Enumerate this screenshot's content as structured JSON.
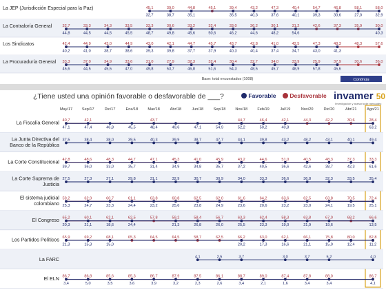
{
  "top_table": {
    "rows": [
      {
        "label": "La JEP (Jurisdicción Especial para la Paz)",
        "fav": [
          null,
          null,
          null,
          null,
          32.7,
          38.7,
          35.1,
          null,
          35.5,
          40.3,
          37.6,
          40.1,
          39.3,
          30.6,
          27.0,
          32.9
        ],
        "des": [
          null,
          null,
          null,
          null,
          45.1,
          39.0,
          44.8,
          45.1,
          39.4,
          43.2,
          47.3,
          40.4,
          54.7,
          46.8,
          58.1,
          58.0
        ]
      },
      {
        "label": "La Contraloría General",
        "fav": [
          44.8,
          44.5,
          44.5,
          45.5,
          48.7,
          49.8,
          45.6,
          50.6,
          46.2,
          44.6,
          48.2,
          54.6,
          null,
          null,
          null,
          40.3
        ],
        "des": [
          32.7,
          33.3,
          34.3,
          33.5,
          33.3,
          30.6,
          33.2,
          32.4,
          33.0,
          36.2,
          30.1,
          31.2,
          42.6,
          37.3,
          35.9,
          30.0
        ]
      },
      {
        "label": "Los Sindicatos",
        "fav": [
          40.2,
          41.0,
          38.7,
          38.6,
          39.3,
          39.8,
          37.7,
          37.9,
          40.3,
          40.4,
          37.4,
          34.7,
          43.0,
          41.3,
          null,
          null
        ],
        "des": [
          42.4,
          44.9,
          43.0,
          44.9,
          43.0,
          42.1,
          44.7,
          45.7,
          43.7,
          42.8,
          41.0,
          42.5,
          47.3,
          48.3,
          48.3,
          57.6
        ]
      },
      {
        "label": "La Procuraduría General",
        "fav": [
          45.6,
          44.5,
          45.5,
          47.0,
          49.8,
          53.7,
          46.8,
          51.6,
          54.3,
          48.5,
          45.7,
          48.9,
          57.8,
          45.6,
          null,
          null
        ],
        "des": [
          33.3,
          37.0,
          34.9,
          33.6,
          31.0,
          27.9,
          32.3,
          32.4,
          30.4,
          32.7,
          34.0,
          33.9,
          25.9,
          37.9,
          30.6,
          36.0
        ]
      }
    ],
    "footnote": "Base: total encuestados (1008)",
    "continued": "Continúa"
  },
  "header": {
    "question": "¿Tiene usted una opinión favorable o desfavorable de ___?",
    "legend_favorable": "Favorable",
    "legend_unfavorable": "Desfavorable",
    "logo_main": "invamer",
    "logo_suffix": "50",
    "logo_tagline": "Investigación y asesoría de mercadeo"
  },
  "colors": {
    "favorable": "#1f2a6b",
    "unfavorable": "#a8323a",
    "highlight": "#d8a21b",
    "row_band": "#eef1f7"
  },
  "chart_data": {
    "type": "line",
    "categories": [
      "May/17",
      "Sep/17",
      "Dic/17",
      "Ene/18",
      "Mar/18",
      "Abr/18",
      "Jun/18",
      "Sep/18",
      "Nov/18",
      "Feb/19",
      "Jul/19",
      "Nov/20",
      "Dic/20",
      "Abr/21",
      "Ago/21"
    ],
    "highlight_category": "Ago/21",
    "rows": [
      {
        "label": "La Fiscalía General",
        "fav": [
          47.1,
          47.4,
          46.8,
          45.5,
          48.4,
          49.6,
          47.1,
          54.9,
          52.2,
          50.2,
          40.8,
          null,
          null,
          null,
          63.2
        ],
        "des": [
          40.7,
          42.1,
          null,
          null,
          43.7,
          null,
          null,
          null,
          44.7,
          46.4,
          42.1,
          44.3,
          42.2,
          30.6,
          28.4
        ]
      },
      {
        "label": "La Junta Directiva del Banco de la República",
        "fav": [
          37.5,
          38.4,
          38.0,
          39.5,
          40.3,
          39.9,
          38.7,
          47.7,
          44.1,
          39.8,
          43.2,
          48.2,
          43.1,
          40.1,
          49.4
        ]
      },
      {
        "label": "La Corte Constitucional",
        "fav": [
          39.7,
          36.0,
          33.0,
          35.7,
          31.4,
          34.9,
          34.8,
          35.7,
          37.2,
          40.5,
          36.6,
          42.6,
          38.7,
          42.3,
          61.6
        ],
        "des": [
          42.8,
          48.6,
          48.3,
          44.7,
          47.1,
          45.3,
          41.0,
          45.9,
          43.2,
          44.6,
          51.0,
          40.5,
          48.3,
          37.3,
          33.3
        ]
      },
      {
        "label": "La Corte Suprema de Justicia",
        "fav": [
          27.5,
          27.3,
          27.1,
          29.8,
          31.1,
          32.9,
          30.7,
          30.9,
          34.0,
          33.3,
          36.6,
          36.8,
          32.3,
          33.5,
          35.4
        ]
      },
      {
        "label": "El sistema judicial colombiano",
        "fav": [
          25.3,
          24.7,
          23.3,
          24.4,
          23.2,
          25.6,
          23.8,
          24.9,
          23.6,
          20.6,
          23.2,
          23.0,
          24.1,
          19.5,
          25.1
        ],
        "des": [
          59.2,
          62.9,
          60.7,
          61.1,
          63.8,
          60.8,
          62.5,
          62.0,
          61.6,
          64.2,
          63.6,
          62.5,
          63.8,
          70.5,
          72.4
        ]
      },
      {
        "label": "El Congreso",
        "fav": [
          20.3,
          21.1,
          18.6,
          24.4,
          null,
          21.3,
          26.8,
          26.0,
          25.5,
          23.3,
          19.0,
          21.9,
          19.6,
          null,
          13.5
        ],
        "des": [
          65.2,
          60.1,
          62.1,
          62.5,
          57.8,
          59.2,
          58.4,
          56.7,
          63.3,
          62.4,
          58.3,
          63.8,
          67.0,
          68.2,
          66.6
        ]
      },
      {
        "label": "Los Partidos Políticos",
        "fav": [
          21.3,
          15.3,
          15.0,
          null,
          null,
          null,
          null,
          null,
          20.2,
          17.3,
          16.6,
          21.1,
          15.0,
          12.4,
          11.2
        ],
        "des": [
          65.9,
          69.2,
          68.1,
          65.3,
          64.5,
          64.5,
          58.7,
          62.5,
          66.2,
          63.0,
          62.1,
          66.1,
          75.8,
          80.0,
          82.8
        ]
      },
      {
        "label": "La FARC",
        "fav": [
          null,
          null,
          null,
          null,
          null,
          null,
          4.1,
          2.5,
          3.7,
          null,
          3.0,
          3.7,
          5.2,
          null,
          4.0
        ]
      },
      {
        "label": "El ELN",
        "fav": [
          3.4,
          5.0,
          3.5,
          3.6,
          3.9,
          3.2,
          2.3,
          2.6,
          3.4,
          2.1,
          1.6,
          3.4,
          3.4,
          null,
          4.1
        ],
        "des": [
          86.7,
          86.8,
          85.6,
          85.3,
          86.7,
          87.9,
          87.5,
          86.1,
          88.7,
          89.0,
          87.4,
          87.8,
          88.0,
          null,
          86.7
        ]
      }
    ]
  }
}
